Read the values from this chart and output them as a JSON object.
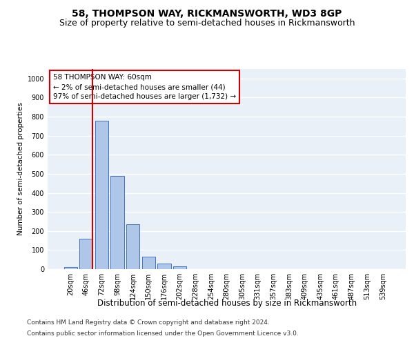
{
  "title1": "58, THOMPSON WAY, RICKMANSWORTH, WD3 8GP",
  "title2": "Size of property relative to semi-detached houses in Rickmansworth",
  "xlabel": "Distribution of semi-detached houses by size in Rickmansworth",
  "ylabel": "Number of semi-detached properties",
  "categories": [
    "20sqm",
    "46sqm",
    "72sqm",
    "98sqm",
    "124sqm",
    "150sqm",
    "176sqm",
    "202sqm",
    "228sqm",
    "254sqm",
    "280sqm",
    "305sqm",
    "331sqm",
    "357sqm",
    "383sqm",
    "409sqm",
    "435sqm",
    "461sqm",
    "487sqm",
    "513sqm",
    "539sqm"
  ],
  "values": [
    10,
    161,
    780,
    490,
    236,
    64,
    28,
    14,
    0,
    0,
    0,
    0,
    0,
    0,
    0,
    0,
    0,
    0,
    0,
    0,
    0
  ],
  "bar_color": "#aec6e8",
  "bar_edge_color": "#4472c4",
  "vline_x": 1.42,
  "vline_color": "#cc0000",
  "annotation_text": "58 THOMPSON WAY: 60sqm\n← 2% of semi-detached houses are smaller (44)\n97% of semi-detached houses are larger (1,732) →",
  "annotation_box_color": "#ffffff",
  "annotation_box_edge_color": "#cc0000",
  "ylim": [
    0,
    1050
  ],
  "yticks": [
    0,
    100,
    200,
    300,
    400,
    500,
    600,
    700,
    800,
    900,
    1000
  ],
  "bg_color": "#eaf0f8",
  "grid_color": "#ffffff",
  "footer_line1": "Contains HM Land Registry data © Crown copyright and database right 2024.",
  "footer_line2": "Contains public sector information licensed under the Open Government Licence v3.0.",
  "title1_fontsize": 10,
  "title2_fontsize": 9,
  "xlabel_fontsize": 8.5,
  "ylabel_fontsize": 7.5,
  "tick_fontsize": 7,
  "annotation_fontsize": 7.5,
  "footer_fontsize": 6.5
}
